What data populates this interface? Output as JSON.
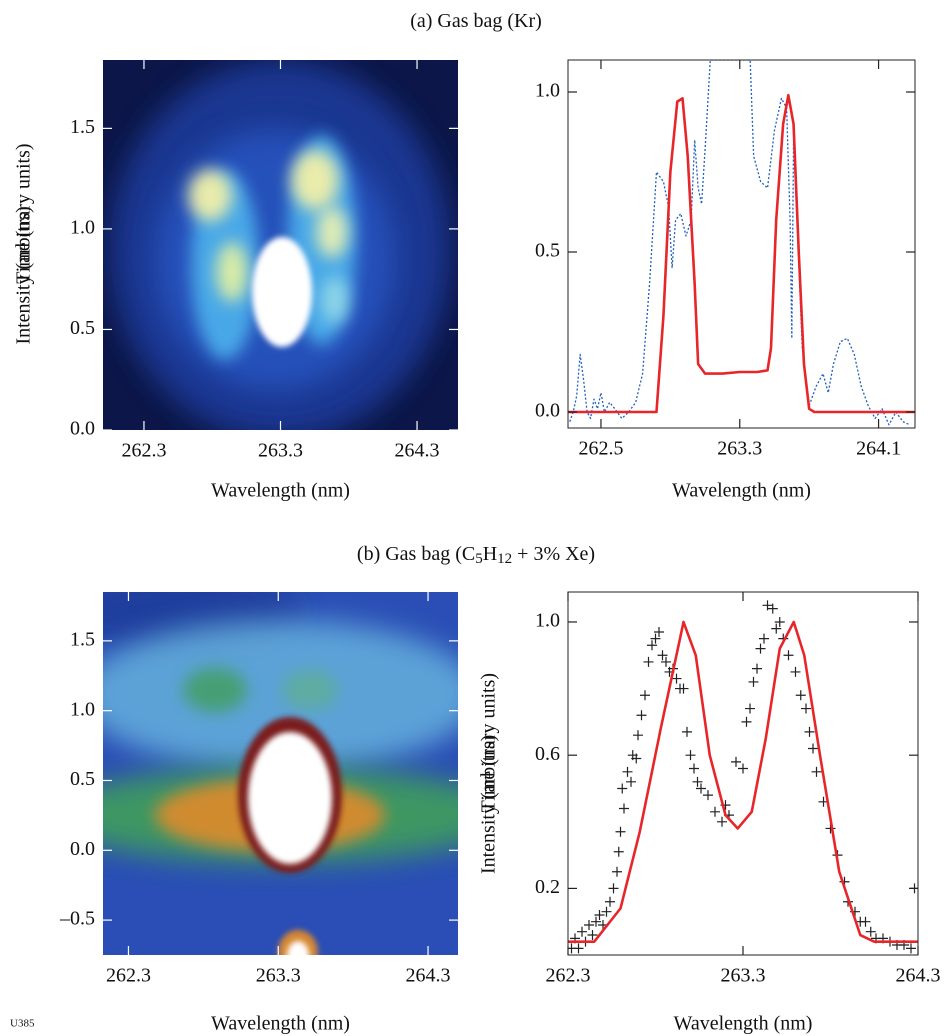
{
  "figure_label": "U385",
  "section_titles": [
    [
      "(a)  Gas bag (Kr)"
    ],
    [
      "(b)  Gas bag (C",
      "5",
      "H",
      "12",
      " + 3% Xe)"
    ]
  ],
  "chart_data": [
    {
      "type": "image",
      "xlabel": "Wavelength (nm)",
      "ylabel": "Time (ns)",
      "xlim": [
        262.0,
        264.6
      ],
      "ylim": [
        0,
        1.84
      ],
      "xticks": [
        262.3,
        263.3,
        264.3
      ],
      "yticks": [
        {
          "value": 0,
          "label": "0.0"
        },
        0.5,
        {
          "value": 1,
          "label": "1.0"
        },
        1.5
      ]
    },
    {
      "type": "line",
      "xlabel": "Wavelength (nm)",
      "ylabel": "Intensity (arbitrary units)",
      "xlim": [
        262.31,
        264.31
      ],
      "ylim": [
        -0.05,
        1.1
      ],
      "xticks": [
        262.5,
        263.3,
        264.1
      ],
      "yticks": [
        {
          "value": 0,
          "label": "0.0"
        },
        0.5,
        {
          "value": 1,
          "label": "1.0"
        }
      ],
      "series": [
        {
          "color": "#1f5fbf",
          "dash": "dotted",
          "x": [
            262.32,
            262.34,
            262.36,
            262.38,
            262.4,
            262.42,
            262.44,
            262.46,
            262.48,
            262.5,
            262.52,
            262.55,
            262.58,
            262.62,
            262.66,
            262.7,
            262.74,
            262.78,
            262.82,
            262.86,
            262.89,
            262.91,
            262.93,
            262.96,
            262.99,
            263.02,
            263.04,
            263.06,
            263.08,
            263.1,
            263.13,
            263.3,
            263.36,
            263.38,
            263.42,
            263.46,
            263.5,
            263.54,
            263.57,
            263.59,
            263.6,
            263.61,
            263.63,
            263.66,
            263.7,
            263.74,
            263.78,
            263.81,
            263.84,
            263.88,
            263.92,
            263.96,
            264.0,
            264.04,
            264.08,
            264.12,
            264.16,
            264.2,
            264.24,
            264.28
          ],
          "values": [
            -0.03,
            0.0,
            0.05,
            0.18,
            0.1,
            0.0,
            -0.02,
            0.04,
            0.01,
            0.06,
            0.0,
            0.03,
            0.01,
            -0.02,
            0.0,
            0.03,
            0.12,
            0.4,
            0.75,
            0.72,
            0.64,
            0.45,
            0.6,
            0.62,
            0.55,
            0.6,
            0.85,
            0.7,
            0.65,
            0.82,
            1.1,
            1.1,
            1.1,
            0.8,
            0.72,
            0.7,
            0.88,
            0.98,
            0.95,
            0.6,
            0.23,
            0.85,
            0.6,
            0.2,
            0.02,
            0.08,
            0.12,
            0.06,
            0.15,
            0.22,
            0.23,
            0.18,
            0.08,
            0.02,
            -0.02,
            0.01,
            -0.04,
            0.0,
            -0.03,
            -0.04
          ]
        },
        {
          "color": "#e8262a",
          "x": [
            262.31,
            262.82,
            262.86,
            262.9,
            262.94,
            262.97,
            263.0,
            263.04,
            263.06,
            263.1,
            263.2,
            263.3,
            263.4,
            263.46,
            263.48,
            263.51,
            263.55,
            263.58,
            263.61,
            263.64,
            263.67,
            263.7,
            263.73,
            264.31
          ],
          "values": [
            0,
            0,
            0.3,
            0.75,
            0.97,
            0.98,
            0.8,
            0.4,
            0.15,
            0.12,
            0.12,
            0.125,
            0.125,
            0.13,
            0.2,
            0.6,
            0.9,
            0.99,
            0.9,
            0.5,
            0.15,
            0.01,
            0,
            0
          ]
        }
      ]
    },
    {
      "type": "image",
      "xlabel": "Wavelength (nm)",
      "ylabel": "Time (ns)",
      "xlim": [
        262.13,
        264.5
      ],
      "ylim": [
        -0.75,
        1.85
      ],
      "xticks": [
        262.3,
        263.3,
        264.3
      ],
      "yticks": [
        {
          "value": -0.5,
          "label": "–0.5"
        },
        {
          "value": 0,
          "label": "0.0"
        },
        0.5,
        {
          "value": 1,
          "label": "1.0"
        },
        1.5
      ]
    },
    {
      "type": "line",
      "xlabel": "Wavelength (nm)",
      "ylabel": "Intensity (arbitrary units)",
      "xlim": [
        262.3,
        264.3
      ],
      "ylim": [
        0,
        1.09
      ],
      "xticks": [
        262.3,
        263.3,
        264.3
      ],
      "yticks": [
        0.2,
        0.6,
        {
          "value": 1,
          "label": "1.0"
        }
      ],
      "series": [
        {
          "color": "#222222",
          "marker": "+",
          "x": [
            262.32,
            262.34,
            262.36,
            262.38,
            262.4,
            262.42,
            262.44,
            262.46,
            262.48,
            262.5,
            262.52,
            262.54,
            262.56,
            262.58,
            262.59,
            262.6,
            262.61,
            262.62,
            262.64,
            262.66,
            262.67,
            262.69,
            262.7,
            262.72,
            262.74,
            262.76,
            262.78,
            262.8,
            262.82,
            262.84,
            262.86,
            262.88,
            262.9,
            262.92,
            262.94,
            262.96,
            262.98,
            263.0,
            263.02,
            263.04,
            263.06,
            263.1,
            263.14,
            263.18,
            263.2,
            263.22,
            263.26,
            263.3,
            263.32,
            263.34,
            263.36,
            263.38,
            263.4,
            263.42,
            263.44,
            263.47,
            263.49,
            263.51,
            263.53,
            263.56,
            263.6,
            263.63,
            263.66,
            263.68,
            263.7,
            263.72,
            263.76,
            263.8,
            263.84,
            263.88,
            263.9,
            263.94,
            263.97,
            264.0,
            264.03,
            264.06,
            264.1,
            264.14,
            264.18,
            264.22,
            264.26,
            264.28
          ],
          "values": [
            0.02,
            0.05,
            0.02,
            0.07,
            0.04,
            0.09,
            0.06,
            0.1,
            0.12,
            0.09,
            0.13,
            0.16,
            0.2,
            0.25,
            0.31,
            0.37,
            0.5,
            0.44,
            0.55,
            0.52,
            0.6,
            0.59,
            0.66,
            0.72,
            0.78,
            0.88,
            0.93,
            0.95,
            0.97,
            0.9,
            0.88,
            0.85,
            0.86,
            0.83,
            0.8,
            0.8,
            0.67,
            0.6,
            0.56,
            0.52,
            0.5,
            0.48,
            0.43,
            0.4,
            0.45,
            0.42,
            0.58,
            0.56,
            0.7,
            0.74,
            0.82,
            0.86,
            0.92,
            0.95,
            1.05,
            1.04,
            0.98,
            1.0,
            0.95,
            0.9,
            0.85,
            0.78,
            0.74,
            0.67,
            0.62,
            0.55,
            0.46,
            0.38,
            0.3,
            0.22,
            0.16,
            0.13,
            0.1,
            0.1,
            0.07,
            0.05,
            0.05,
            0.04,
            0.03,
            0.03,
            0.02,
            0.2
          ]
        },
        {
          "color": "#e8262a",
          "x": [
            262.3,
            262.45,
            262.6,
            262.71,
            262.83,
            262.94,
            262.96,
            263.03,
            263.11,
            263.2,
            263.27,
            263.35,
            263.43,
            263.51,
            263.59,
            263.65,
            263.74,
            263.85,
            263.97,
            264.05,
            264.3
          ],
          "values": [
            0.04,
            0.04,
            0.14,
            0.37,
            0.68,
            0.95,
            1.0,
            0.9,
            0.6,
            0.42,
            0.38,
            0.43,
            0.65,
            0.92,
            1.0,
            0.9,
            0.6,
            0.25,
            0.06,
            0.04,
            0.04
          ]
        }
      ]
    }
  ]
}
